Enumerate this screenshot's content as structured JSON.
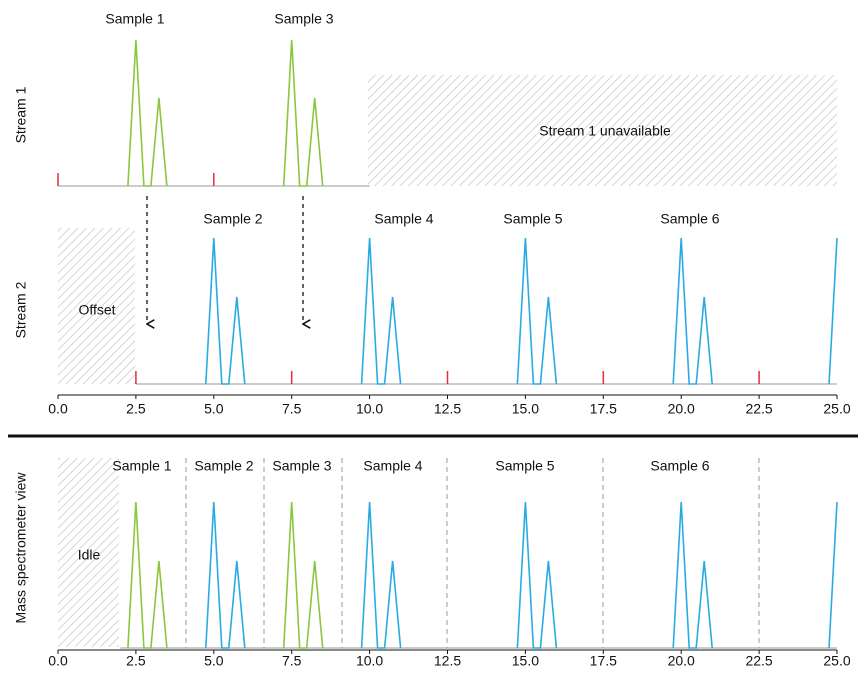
{
  "axis": {
    "ticks": [
      {
        "value": 0,
        "label": "0.0"
      },
      {
        "value": 2.5,
        "label": "2.5"
      },
      {
        "value": 5,
        "label": "5.0"
      },
      {
        "value": 7.5,
        "label": "7.5"
      },
      {
        "value": 10,
        "label": "10.0"
      },
      {
        "value": 12.5,
        "label": "12.5"
      },
      {
        "value": 15,
        "label": "15.0"
      },
      {
        "value": 17.5,
        "label": "17.5"
      },
      {
        "value": 20,
        "label": "20.0"
      },
      {
        "value": 22.5,
        "label": "22.5"
      },
      {
        "value": 25,
        "label": "25.0"
      }
    ]
  },
  "stream1": {
    "label": "Stream 1",
    "unavailable": "Stream 1 unavailable",
    "samples": [
      "Sample 1",
      "Sample 3"
    ]
  },
  "stream2": {
    "label": "Stream 2",
    "offset": "Offset",
    "samples": [
      "Sample 2",
      "Sample 4",
      "Sample 5",
      "Sample 6"
    ]
  },
  "ms_view": {
    "label": "Mass spectrometer view",
    "idle": "Idle",
    "samples": [
      "Sample 1",
      "Sample 2",
      "Sample 3",
      "Sample 4",
      "Sample 5",
      "Sample 6"
    ]
  }
}
